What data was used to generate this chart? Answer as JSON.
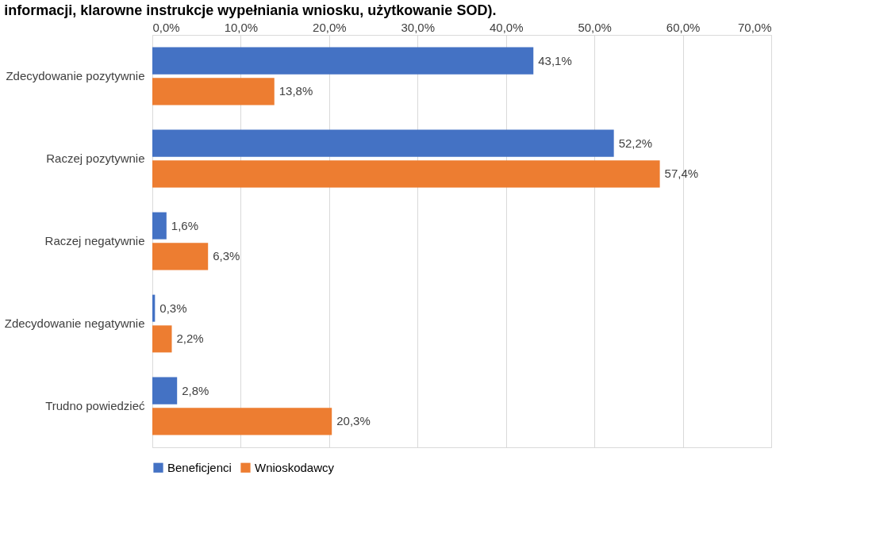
{
  "chart_data": {
    "type": "bar",
    "orientation": "horizontal",
    "title": "informacji, klarowne instrukcje wypełniania wniosku, użytkowanie SOD).",
    "categories": [
      "Zdecydowanie pozytywnie",
      "Raczej pozytywnie",
      "Raczej negatywnie",
      "Zdecydowanie negatywnie",
      "Trudno powiedzieć"
    ],
    "series": [
      {
        "name": "Beneficjenci",
        "color": "#4472c4",
        "values": [
          43.1,
          52.2,
          1.6,
          0.3,
          2.8
        ],
        "value_labels": [
          "43,1%",
          "52,2%",
          "1,6%",
          "0,3%",
          "2,8%"
        ]
      },
      {
        "name": "Wnioskodawcy",
        "color": "#ed7d31",
        "values": [
          13.8,
          57.4,
          6.3,
          2.2,
          20.3
        ],
        "value_labels": [
          "13,8%",
          "57,4%",
          "6,3%",
          "2,2%",
          "20,3%"
        ]
      }
    ],
    "xlim": [
      0,
      70
    ],
    "xticks": [
      {
        "value": 0,
        "label": "0,0%"
      },
      {
        "value": 10,
        "label": "10,0%"
      },
      {
        "value": 20,
        "label": "20,0%"
      },
      {
        "value": 30,
        "label": "30,0%"
      },
      {
        "value": 40,
        "label": "40,0%"
      },
      {
        "value": 50,
        "label": "50,0%"
      },
      {
        "value": 60,
        "label": "60,0%"
      },
      {
        "value": 70,
        "label": "70,0%"
      }
    ],
    "grid": "x",
    "legend": "bottom"
  }
}
